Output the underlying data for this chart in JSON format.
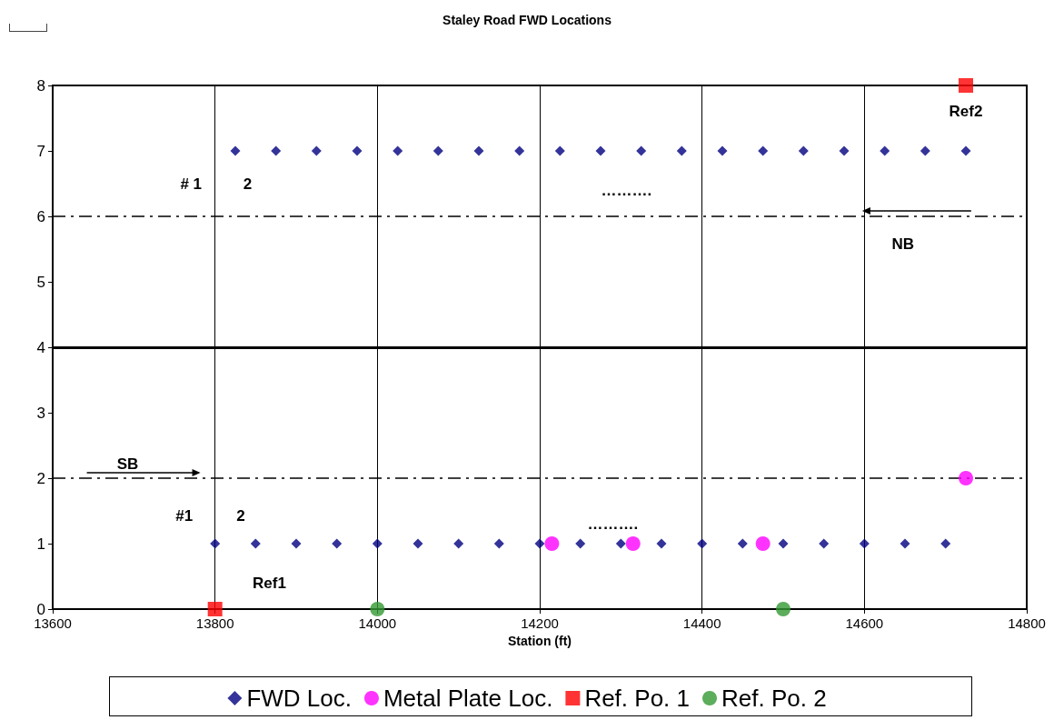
{
  "chart_data": {
    "type": "scatter",
    "title": "Staley Road FWD Locations",
    "xlabel": "Station (ft)",
    "xlim": [
      13600,
      14800
    ],
    "xticks": [
      13600,
      13800,
      14000,
      14200,
      14400,
      14600,
      14800
    ],
    "ylim": [
      0,
      8
    ],
    "yticks": [
      0,
      1,
      2,
      3,
      4,
      5,
      6,
      7,
      8
    ],
    "grid": "x",
    "legend": "bottom",
    "series": [
      {
        "name": "FWD Loc.",
        "color": "#000080",
        "marker": "diamond",
        "x": [
          13825,
          13875,
          13925,
          13975,
          14025,
          14075,
          14125,
          14175,
          14225,
          14275,
          14325,
          14375,
          14425,
          14475,
          14525,
          14575,
          14625,
          14675,
          14725,
          13800,
          13850,
          13900,
          13950,
          14000,
          14050,
          14100,
          14150,
          14200,
          14250,
          14300,
          14350,
          14400,
          14450,
          14500,
          14550,
          14600,
          14650,
          14700
        ],
        "values": [
          7,
          7,
          7,
          7,
          7,
          7,
          7,
          7,
          7,
          7,
          7,
          7,
          7,
          7,
          7,
          7,
          7,
          7,
          7,
          1,
          1,
          1,
          1,
          1,
          1,
          1,
          1,
          1,
          1,
          1,
          1,
          1,
          1,
          1,
          1,
          1,
          1,
          1
        ]
      },
      {
        "name": "Metal Plate Loc.",
        "color": "#ff00ff",
        "marker": "circle",
        "x": [
          14215,
          14315,
          14475,
          14725
        ],
        "values": [
          1,
          1,
          1,
          2
        ]
      },
      {
        "name": "Ref. Po. 1",
        "color": "#ff0000",
        "marker": "square",
        "x": [
          13800,
          14725
        ],
        "values": [
          0,
          8
        ]
      },
      {
        "name": "Ref. Po. 2",
        "color": "#339933",
        "marker": "circle",
        "x": [
          14000,
          14500
        ],
        "values": [
          0,
          0
        ]
      }
    ],
    "ref_lines": [
      {
        "axis": "y",
        "value": 6,
        "color": "#000000",
        "line_style": "dashed"
      },
      {
        "axis": "y",
        "value": 4,
        "color": "#000000",
        "line_style": "solid"
      },
      {
        "axis": "y",
        "value": 2,
        "color": "#000000",
        "line_style": "dashed"
      }
    ],
    "annotations": [
      "# 1",
      "2",
      "……….",
      "Ref2",
      "NB",
      "SB",
      "#1",
      "2",
      "……….",
      "Ref1"
    ]
  }
}
